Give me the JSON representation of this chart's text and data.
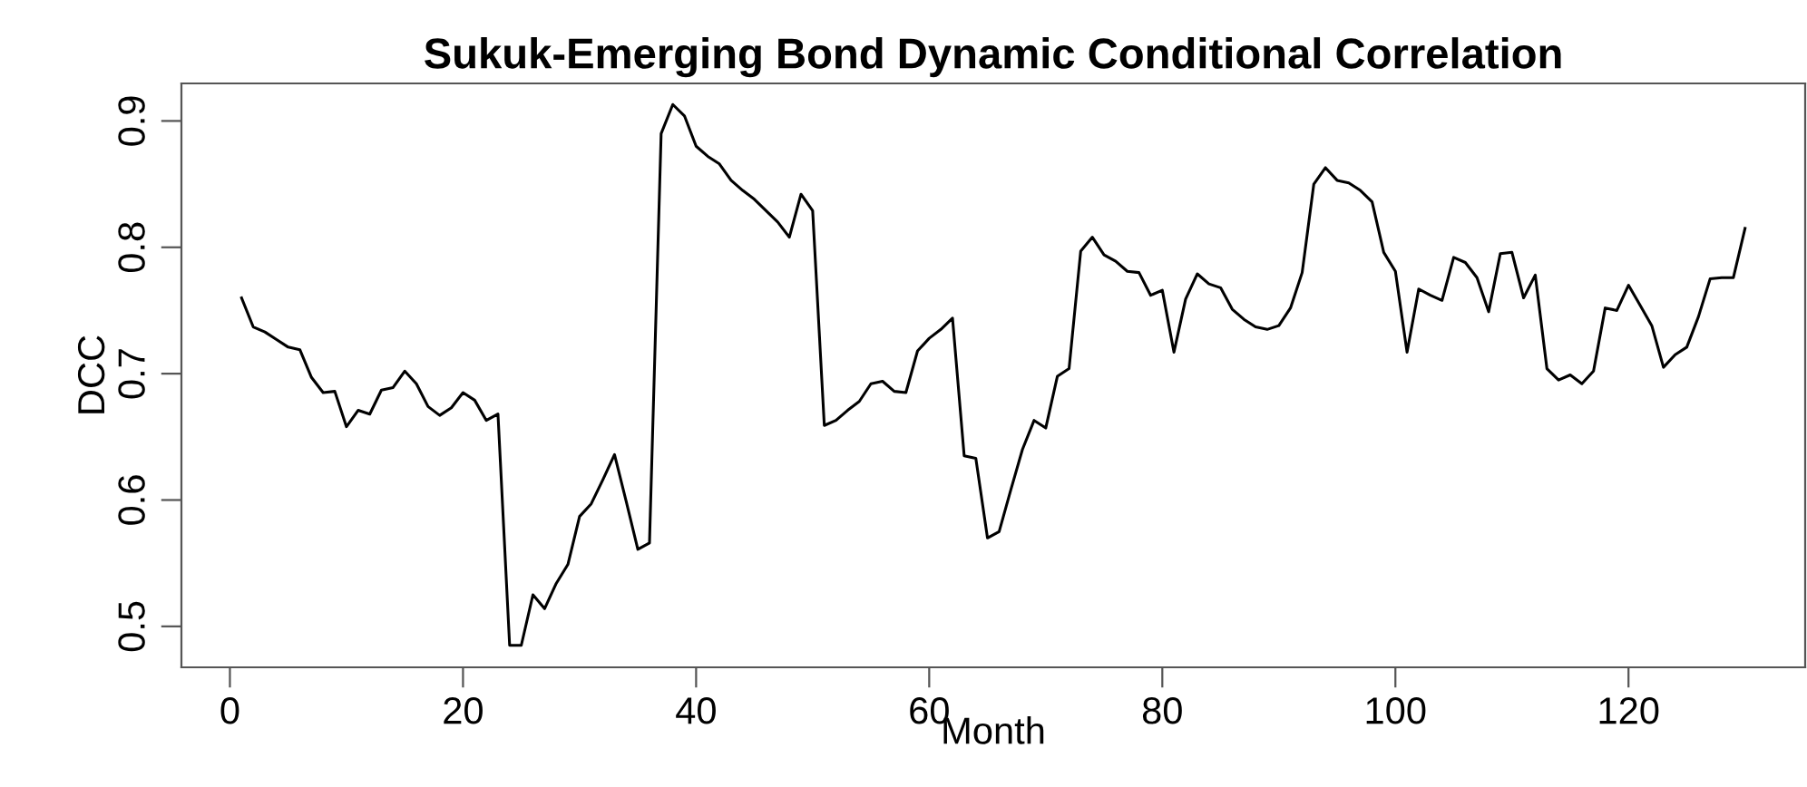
{
  "chart_data": {
    "type": "line",
    "title": "Sukuk-Emerging Bond Dynamic Conditional Correlation",
    "xlabel": "Month",
    "ylabel": "DCC",
    "x": [
      1,
      2,
      3,
      4,
      5,
      6,
      7,
      8,
      9,
      10,
      11,
      12,
      13,
      14,
      15,
      16,
      17,
      18,
      19,
      20,
      21,
      22,
      23,
      24,
      25,
      26,
      27,
      28,
      29,
      30,
      31,
      32,
      33,
      34,
      35,
      36,
      37,
      38,
      39,
      40,
      41,
      42,
      43,
      44,
      45,
      46,
      47,
      48,
      49,
      50,
      51,
      52,
      53,
      54,
      55,
      56,
      57,
      58,
      59,
      60,
      61,
      62,
      63,
      64,
      65,
      66,
      67,
      68,
      69,
      70,
      71,
      72,
      73,
      74,
      75,
      76,
      77,
      78,
      79,
      80,
      81,
      82,
      83,
      84,
      85,
      86,
      87,
      88,
      89,
      90,
      91,
      92,
      93,
      94,
      95,
      96,
      97,
      98,
      99,
      100,
      101,
      102,
      103,
      104,
      105,
      106,
      107,
      108,
      109,
      110,
      111,
      112,
      113,
      114,
      115,
      116,
      117,
      118,
      119,
      120,
      121,
      122,
      123,
      124,
      125,
      126,
      127,
      128,
      129,
      130
    ],
    "series": [
      {
        "color": "#000000",
        "values": [
          0.76,
          0.737,
          0.733,
          0.727,
          0.721,
          0.719,
          0.697,
          0.685,
          0.686,
          0.658,
          0.671,
          0.668,
          0.687,
          0.689,
          0.702,
          0.692,
          0.674,
          0.667,
          0.673,
          0.685,
          0.679,
          0.663,
          0.668,
          0.485,
          0.485,
          0.525,
          0.514,
          0.534,
          0.549,
          0.587,
          0.597,
          0.616,
          0.636,
          0.599,
          0.561,
          0.566,
          0.89,
          0.913,
          0.904,
          0.88,
          0.872,
          0.866,
          0.853,
          0.845,
          0.838,
          0.829,
          0.82,
          0.808,
          0.842,
          0.829,
          0.659,
          0.663,
          0.671,
          0.678,
          0.692,
          0.694,
          0.686,
          0.685,
          0.718,
          0.728,
          0.735,
          0.744,
          0.635,
          0.633,
          0.57,
          0.575,
          0.608,
          0.64,
          0.663,
          0.657,
          0.698,
          0.704,
          0.797,
          0.808,
          0.794,
          0.789,
          0.781,
          0.78,
          0.762,
          0.766,
          0.717,
          0.759,
          0.779,
          0.771,
          0.768,
          0.751,
          0.743,
          0.737,
          0.735,
          0.738,
          0.752,
          0.78,
          0.85,
          0.863,
          0.853,
          0.851,
          0.845,
          0.836,
          0.796,
          0.781,
          0.717,
          0.767,
          0.762,
          0.758,
          0.792,
          0.788,
          0.776,
          0.749,
          0.795,
          0.796,
          0.76,
          0.778,
          0.704,
          0.695,
          0.699,
          0.692,
          0.702,
          0.752,
          0.75,
          0.77,
          0.754,
          0.738,
          0.705,
          0.715,
          0.721,
          0.745,
          0.775,
          0.776,
          0.776,
          0.815
        ]
      }
    ],
    "xlim": [
      -4.16,
      135.16
    ],
    "ylim": [
      0.4676,
      0.9297
    ],
    "xticks": [
      0,
      20,
      40,
      60,
      80,
      100,
      120
    ],
    "yticks": [
      0.5,
      0.6,
      0.7,
      0.8,
      0.9
    ],
    "grid": false,
    "legend": false,
    "marker": "none",
    "line_style": "solid"
  }
}
